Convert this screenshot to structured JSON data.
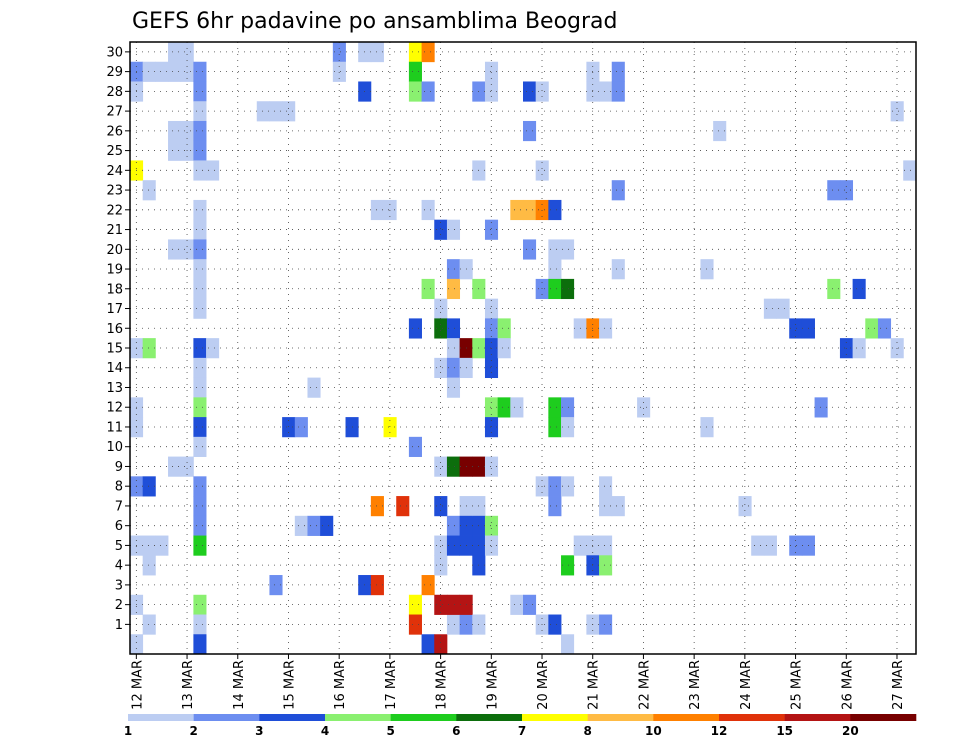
{
  "chart_data": {
    "type": "heatmap",
    "title": "GEFS 6hr padavine po ansamblima Beograd",
    "xlabel": "",
    "ylabel": "",
    "x_ticks": [
      "12 MAR",
      "13 MAR",
      "14 MAR",
      "15 MAR",
      "16 MAR",
      "17 MAR",
      "18 MAR",
      "19 MAR",
      "20 MAR",
      "21 MAR",
      "22 MAR",
      "23 MAR",
      "24 MAR",
      "25 MAR",
      "26 MAR",
      "27 MAR"
    ],
    "y_ticks": [
      1,
      2,
      3,
      4,
      5,
      6,
      7,
      8,
      9,
      10,
      11,
      12,
      13,
      14,
      15,
      16,
      17,
      18,
      19,
      20,
      21,
      22,
      23,
      24,
      25,
      26,
      27,
      28,
      29,
      30
    ],
    "x_range_steps": [
      0,
      61
    ],
    "y_range": [
      0,
      30
    ],
    "grid": true,
    "legend": {
      "position": "bottom",
      "bounds": [
        1,
        2,
        3,
        4,
        5,
        6,
        7,
        8,
        10,
        12,
        15,
        20
      ],
      "colors": [
        "#bccdf2",
        "#6d8ef0",
        "#1f4ed8",
        "#8af070",
        "#1ecd1e",
        "#0c6e0c",
        "#ffff00",
        "#ffbb44",
        "#ff8000",
        "#e0320a",
        "#b41414",
        "#780000"
      ]
    },
    "cells": [
      [
        0,
        29,
        2
      ],
      [
        0,
        28,
        1
      ],
      [
        0,
        24,
        7
      ],
      [
        0,
        15,
        1
      ],
      [
        0,
        12,
        1
      ],
      [
        0,
        11,
        1
      ],
      [
        0,
        8,
        2
      ],
      [
        0,
        5,
        1
      ],
      [
        0,
        2,
        1
      ],
      [
        0,
        0,
        1
      ],
      [
        1,
        29,
        1
      ],
      [
        1,
        23,
        1
      ],
      [
        1,
        15,
        4
      ],
      [
        1,
        8,
        3
      ],
      [
        1,
        5,
        1
      ],
      [
        1,
        4,
        1
      ],
      [
        1,
        1,
        1
      ],
      [
        2,
        29,
        1
      ],
      [
        2,
        5,
        1
      ],
      [
        3,
        30,
        1
      ],
      [
        3,
        29,
        1
      ],
      [
        3,
        26,
        1
      ],
      [
        3,
        25,
        1
      ],
      [
        3,
        20,
        1
      ],
      [
        3,
        9,
        1
      ],
      [
        4,
        30,
        1
      ],
      [
        4,
        29,
        1
      ],
      [
        4,
        26,
        1
      ],
      [
        4,
        25,
        1
      ],
      [
        4,
        20,
        1
      ],
      [
        4,
        9,
        1
      ],
      [
        5,
        29,
        2
      ],
      [
        5,
        28,
        2
      ],
      [
        5,
        27,
        1
      ],
      [
        5,
        26,
        2
      ],
      [
        5,
        25,
        2
      ],
      [
        5,
        24,
        1
      ],
      [
        5,
        22,
        1
      ],
      [
        5,
        21,
        1
      ],
      [
        5,
        20,
        2
      ],
      [
        5,
        19,
        1
      ],
      [
        5,
        18,
        1
      ],
      [
        5,
        17,
        1
      ],
      [
        5,
        15,
        3
      ],
      [
        5,
        14,
        1
      ],
      [
        5,
        13,
        1
      ],
      [
        5,
        12,
        4
      ],
      [
        5,
        11,
        3
      ],
      [
        5,
        10,
        1
      ],
      [
        5,
        8,
        2
      ],
      [
        5,
        7,
        2
      ],
      [
        5,
        6,
        2
      ],
      [
        5,
        5,
        5
      ],
      [
        5,
        2,
        4
      ],
      [
        5,
        1,
        1
      ],
      [
        5,
        0,
        3
      ],
      [
        6,
        24,
        1
      ],
      [
        6,
        15,
        1
      ],
      [
        10,
        27,
        1
      ],
      [
        11,
        27,
        1
      ],
      [
        11,
        3,
        2
      ],
      [
        12,
        27,
        1
      ],
      [
        12,
        11,
        3
      ],
      [
        13,
        11,
        2
      ],
      [
        13,
        6,
        1
      ],
      [
        14,
        13,
        1
      ],
      [
        14,
        6,
        2
      ],
      [
        15,
        6,
        3
      ],
      [
        16,
        30,
        2
      ],
      [
        16,
        29,
        1
      ],
      [
        17,
        11,
        3
      ],
      [
        18,
        30,
        1
      ],
      [
        18,
        28,
        3
      ],
      [
        18,
        3,
        3
      ],
      [
        19,
        30,
        1
      ],
      [
        19,
        22,
        1
      ],
      [
        19,
        7,
        9
      ],
      [
        19,
        3,
        10
      ],
      [
        20,
        22,
        1
      ],
      [
        20,
        11,
        7
      ],
      [
        21,
        7,
        10
      ],
      [
        22,
        30,
        7
      ],
      [
        22,
        29,
        5
      ],
      [
        22,
        28,
        4
      ],
      [
        22,
        16,
        3
      ],
      [
        22,
        10,
        2
      ],
      [
        22,
        2,
        7
      ],
      [
        22,
        1,
        10
      ],
      [
        23,
        30,
        9
      ],
      [
        23,
        28,
        2
      ],
      [
        23,
        22,
        1
      ],
      [
        23,
        18,
        4
      ],
      [
        23,
        3,
        9
      ],
      [
        23,
        0,
        3
      ],
      [
        24,
        21,
        3
      ],
      [
        24,
        17,
        1
      ],
      [
        24,
        16,
        6
      ],
      [
        24,
        14,
        1
      ],
      [
        24,
        9,
        1
      ],
      [
        24,
        7,
        3
      ],
      [
        24,
        5,
        1
      ],
      [
        24,
        4,
        1
      ],
      [
        24,
        2,
        11
      ],
      [
        24,
        0,
        11
      ],
      [
        25,
        21,
        1
      ],
      [
        25,
        19,
        2
      ],
      [
        25,
        18,
        8
      ],
      [
        25,
        16,
        3
      ],
      [
        25,
        15,
        1
      ],
      [
        25,
        14,
        2
      ],
      [
        25,
        13,
        1
      ],
      [
        25,
        9,
        6
      ],
      [
        25,
        6,
        2
      ],
      [
        25,
        5,
        3
      ],
      [
        25,
        1,
        1
      ],
      [
        25,
        2,
        11
      ],
      [
        26,
        19,
        1
      ],
      [
        26,
        15,
        12
      ],
      [
        26,
        14,
        1
      ],
      [
        26,
        9,
        12
      ],
      [
        26,
        7,
        1
      ],
      [
        26,
        6,
        3
      ],
      [
        26,
        5,
        3
      ],
      [
        26,
        1,
        2
      ],
      [
        26,
        2,
        11
      ],
      [
        27,
        28,
        2
      ],
      [
        27,
        24,
        1
      ],
      [
        27,
        18,
        4
      ],
      [
        27,
        15,
        4
      ],
      [
        27,
        9,
        12
      ],
      [
        27,
        7,
        1
      ],
      [
        27,
        6,
        3
      ],
      [
        27,
        5,
        3
      ],
      [
        27,
        4,
        3
      ],
      [
        27,
        1,
        1
      ],
      [
        28,
        29,
        1
      ],
      [
        28,
        28,
        1
      ],
      [
        28,
        21,
        2
      ],
      [
        28,
        17,
        1
      ],
      [
        28,
        16,
        2
      ],
      [
        28,
        15,
        3
      ],
      [
        28,
        14,
        3
      ],
      [
        28,
        12,
        4
      ],
      [
        28,
        11,
        3
      ],
      [
        28,
        9,
        1
      ],
      [
        28,
        6,
        4
      ],
      [
        28,
        5,
        1
      ],
      [
        29,
        16,
        4
      ],
      [
        29,
        15,
        1
      ],
      [
        29,
        12,
        5
      ],
      [
        30,
        22,
        8
      ],
      [
        30,
        12,
        1
      ],
      [
        30,
        2,
        1
      ],
      [
        31,
        28,
        3
      ],
      [
        31,
        26,
        2
      ],
      [
        31,
        22,
        8
      ],
      [
        31,
        20,
        2
      ],
      [
        31,
        2,
        2
      ],
      [
        32,
        28,
        1
      ],
      [
        32,
        24,
        1
      ],
      [
        32,
        22,
        9
      ],
      [
        32,
        18,
        2
      ],
      [
        32,
        8,
        1
      ],
      [
        32,
        1,
        1
      ],
      [
        33,
        22,
        3
      ],
      [
        33,
        20,
        1
      ],
      [
        33,
        19,
        1
      ],
      [
        33,
        18,
        5
      ],
      [
        33,
        12,
        5
      ],
      [
        33,
        11,
        5
      ],
      [
        33,
        8,
        2
      ],
      [
        33,
        7,
        2
      ],
      [
        33,
        1,
        3
      ],
      [
        34,
        20,
        1
      ],
      [
        34,
        18,
        6
      ],
      [
        34,
        12,
        2
      ],
      [
        34,
        11,
        1
      ],
      [
        34,
        8,
        1
      ],
      [
        34,
        4,
        5
      ],
      [
        34,
        0,
        1
      ],
      [
        35,
        16,
        1
      ],
      [
        35,
        5,
        1
      ],
      [
        36,
        29,
        1
      ],
      [
        36,
        28,
        1
      ],
      [
        36,
        16,
        9
      ],
      [
        36,
        5,
        1
      ],
      [
        36,
        4,
        3
      ],
      [
        36,
        1,
        1
      ],
      [
        37,
        28,
        1
      ],
      [
        37,
        16,
        1
      ],
      [
        37,
        8,
        1
      ],
      [
        37,
        7,
        1
      ],
      [
        37,
        5,
        1
      ],
      [
        37,
        4,
        4
      ],
      [
        37,
        1,
        2
      ],
      [
        38,
        29,
        2
      ],
      [
        38,
        28,
        2
      ],
      [
        38,
        23,
        2
      ],
      [
        38,
        19,
        1
      ],
      [
        38,
        7,
        1
      ],
      [
        40,
        12,
        1
      ],
      [
        45,
        19,
        1
      ],
      [
        45,
        11,
        1
      ],
      [
        46,
        26,
        1
      ],
      [
        48,
        7,
        1
      ],
      [
        49,
        5,
        1
      ],
      [
        50,
        17,
        1
      ],
      [
        50,
        5,
        1
      ],
      [
        51,
        17,
        1
      ],
      [
        52,
        16,
        3
      ],
      [
        52,
        5,
        2
      ],
      [
        53,
        16,
        3
      ],
      [
        53,
        5,
        2
      ],
      [
        54,
        12,
        2
      ],
      [
        55,
        23,
        2
      ],
      [
        55,
        18,
        4
      ],
      [
        56,
        23,
        2
      ],
      [
        56,
        15,
        3
      ],
      [
        57,
        18,
        3
      ],
      [
        57,
        15,
        1
      ],
      [
        58,
        16,
        4
      ],
      [
        59,
        16,
        2
      ],
      [
        60,
        27,
        1
      ],
      [
        60,
        15,
        1
      ],
      [
        61,
        24,
        1
      ],
      [
        61,
        24,
        1
      ]
    ]
  }
}
